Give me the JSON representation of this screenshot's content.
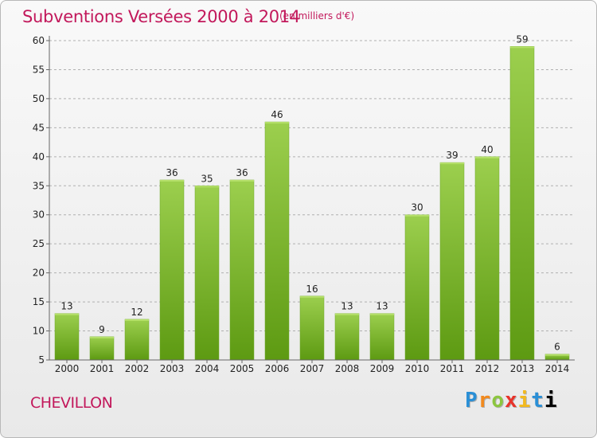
{
  "header": {
    "title": "Subventions Versées 2000 à 2014",
    "unit": "(en milliers d'€)"
  },
  "footer": {
    "commune": "CHEVILLON",
    "logo_letters": [
      "P",
      "r",
      "o",
      "x",
      "i",
      "t",
      "i"
    ]
  },
  "colors": {
    "accent": "#c2185b",
    "bar_top": "#9ccf4e",
    "bar_bottom": "#5d9a12",
    "grid": "#b0b0b0"
  },
  "chart_data": {
    "type": "bar",
    "title": "Subventions Versées 2000 à 2014",
    "subtitle": "(en milliers d'€)",
    "xlabel": "",
    "ylabel": "",
    "categories": [
      "2000",
      "2001",
      "2002",
      "2003",
      "2004",
      "2005",
      "2006",
      "2007",
      "2008",
      "2009",
      "2010",
      "2011",
      "2012",
      "2013",
      "2014"
    ],
    "values": [
      13,
      9,
      12,
      36,
      35,
      36,
      46,
      16,
      13,
      13,
      30,
      39,
      40,
      59,
      6
    ],
    "ylim": [
      5,
      60
    ],
    "yticks": [
      5,
      10,
      15,
      20,
      25,
      30,
      35,
      40,
      45,
      50,
      55,
      60
    ],
    "grid": true,
    "data_labels": true
  }
}
